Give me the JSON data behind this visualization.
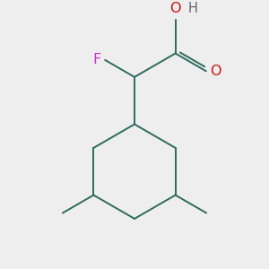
{
  "background_color": "#eeeeee",
  "bond_color": "#2d6b5e",
  "bond_width": 1.4,
  "F_color": "#cc33cc",
  "O_color": "#cc1111",
  "H_color": "#666666",
  "font_size_label": 10.5,
  "fig_size": [
    3.0,
    3.0
  ],
  "dpi": 100,
  "xlim": [
    -1.8,
    1.8
  ],
  "ylim": [
    -2.5,
    1.8
  ]
}
